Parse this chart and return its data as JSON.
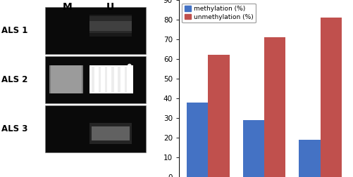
{
  "categories": [
    "ALS 1",
    "ALS 2",
    "ALS 3"
  ],
  "methylation": [
    38,
    29,
    19
  ],
  "unmethylation": [
    62,
    71,
    81
  ],
  "bar_color_meth": "#4472c4",
  "bar_color_unmeth": "#c0504d",
  "legend_labels": [
    "methylation (%)",
    "unmethylation (%)"
  ],
  "ylim": [
    0,
    90
  ],
  "yticks": [
    0,
    10,
    20,
    30,
    40,
    50,
    60,
    70,
    80,
    90
  ],
  "gel_labels_left": [
    "ALS 1",
    "ALS 2",
    "ALS 3"
  ],
  "gel_col_labels": [
    "M",
    "U"
  ],
  "gel_bg": "#0a0a0a"
}
